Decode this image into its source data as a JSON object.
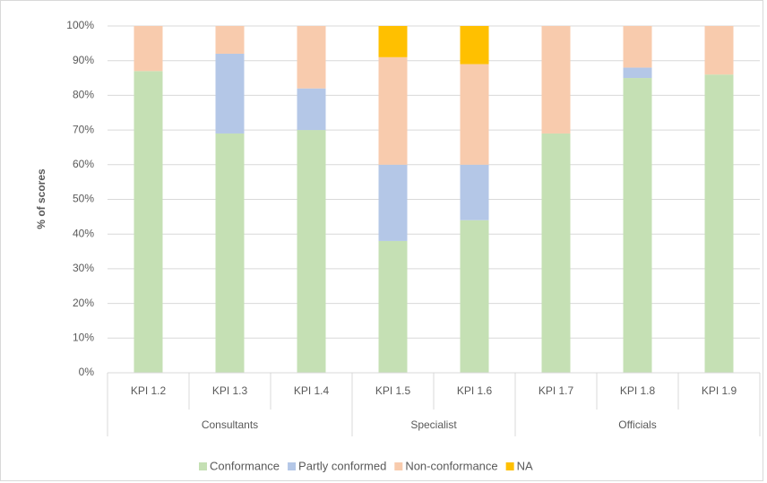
{
  "chart_data": {
    "type": "stacked_bar",
    "y_label": "% of scores",
    "categories": [
      "KPI 1.2",
      "KPI 1.3",
      "KPI 1.4",
      "KPI 1.5",
      "KPI 1.6",
      "KPI 1.7",
      "KPI 1.8",
      "KPI 1.9"
    ],
    "groups": [
      {
        "name": "Consultants",
        "size": 3
      },
      {
        "name": "Specialist",
        "size": 2
      },
      {
        "name": "Officials",
        "size": 3
      }
    ],
    "series": [
      {
        "name": "Conformance",
        "color": "#c5e0b4",
        "values": [
          87,
          69,
          70,
          38,
          44,
          69,
          85,
          86
        ]
      },
      {
        "name": "Partly conformed",
        "color": "#b4c7e7",
        "values": [
          0,
          23,
          12,
          22,
          16,
          0,
          3,
          0
        ]
      },
      {
        "name": "Non-conformance",
        "color": "#f8cbad",
        "values": [
          13,
          8,
          18,
          31,
          29,
          31,
          12,
          14
        ]
      },
      {
        "name": "NA",
        "color": "#ffc000",
        "values": [
          0,
          0,
          0,
          9,
          11,
          0,
          0,
          0
        ]
      }
    ],
    "ylim": [
      0,
      100
    ],
    "yticks": [
      {
        "value": 0,
        "label": "0%"
      },
      {
        "value": 10,
        "label": "10%"
      },
      {
        "value": 20,
        "label": "20%"
      },
      {
        "value": 30,
        "label": "30%"
      },
      {
        "value": 40,
        "label": "40%"
      },
      {
        "value": 50,
        "label": "50%"
      },
      {
        "value": 60,
        "label": "60%"
      },
      {
        "value": 70,
        "label": "70%"
      },
      {
        "value": 80,
        "label": "80%"
      },
      {
        "value": 90,
        "label": "90%"
      },
      {
        "value": 100,
        "label": "100%"
      }
    ],
    "grid": true,
    "legend": "bottom"
  }
}
